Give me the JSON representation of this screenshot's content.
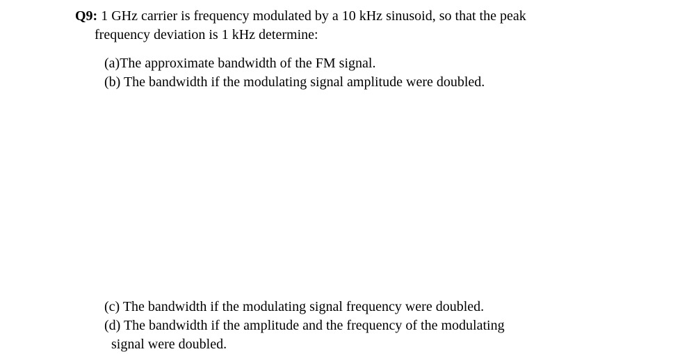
{
  "text_color": "#000000",
  "background_color": "#ffffff",
  "font_family": "Times New Roman",
  "font_size_pt": 15,
  "question": {
    "label": "Q9:",
    "line1_rest": " 1 GHz carrier is frequency modulated by a 10 kHz sinusoid, so that the peak",
    "line2": "frequency deviation is 1 kHz determine:"
  },
  "parts": {
    "a": "(a)The approximate bandwidth of the FM signal.",
    "b": "(b) The bandwidth if the modulating signal amplitude were doubled.",
    "c": "(c) The bandwidth if the modulating signal frequency were doubled.",
    "d_line1": "(d) The bandwidth if the amplitude and the frequency of the modulating",
    "d_line2": "signal were doubled."
  }
}
